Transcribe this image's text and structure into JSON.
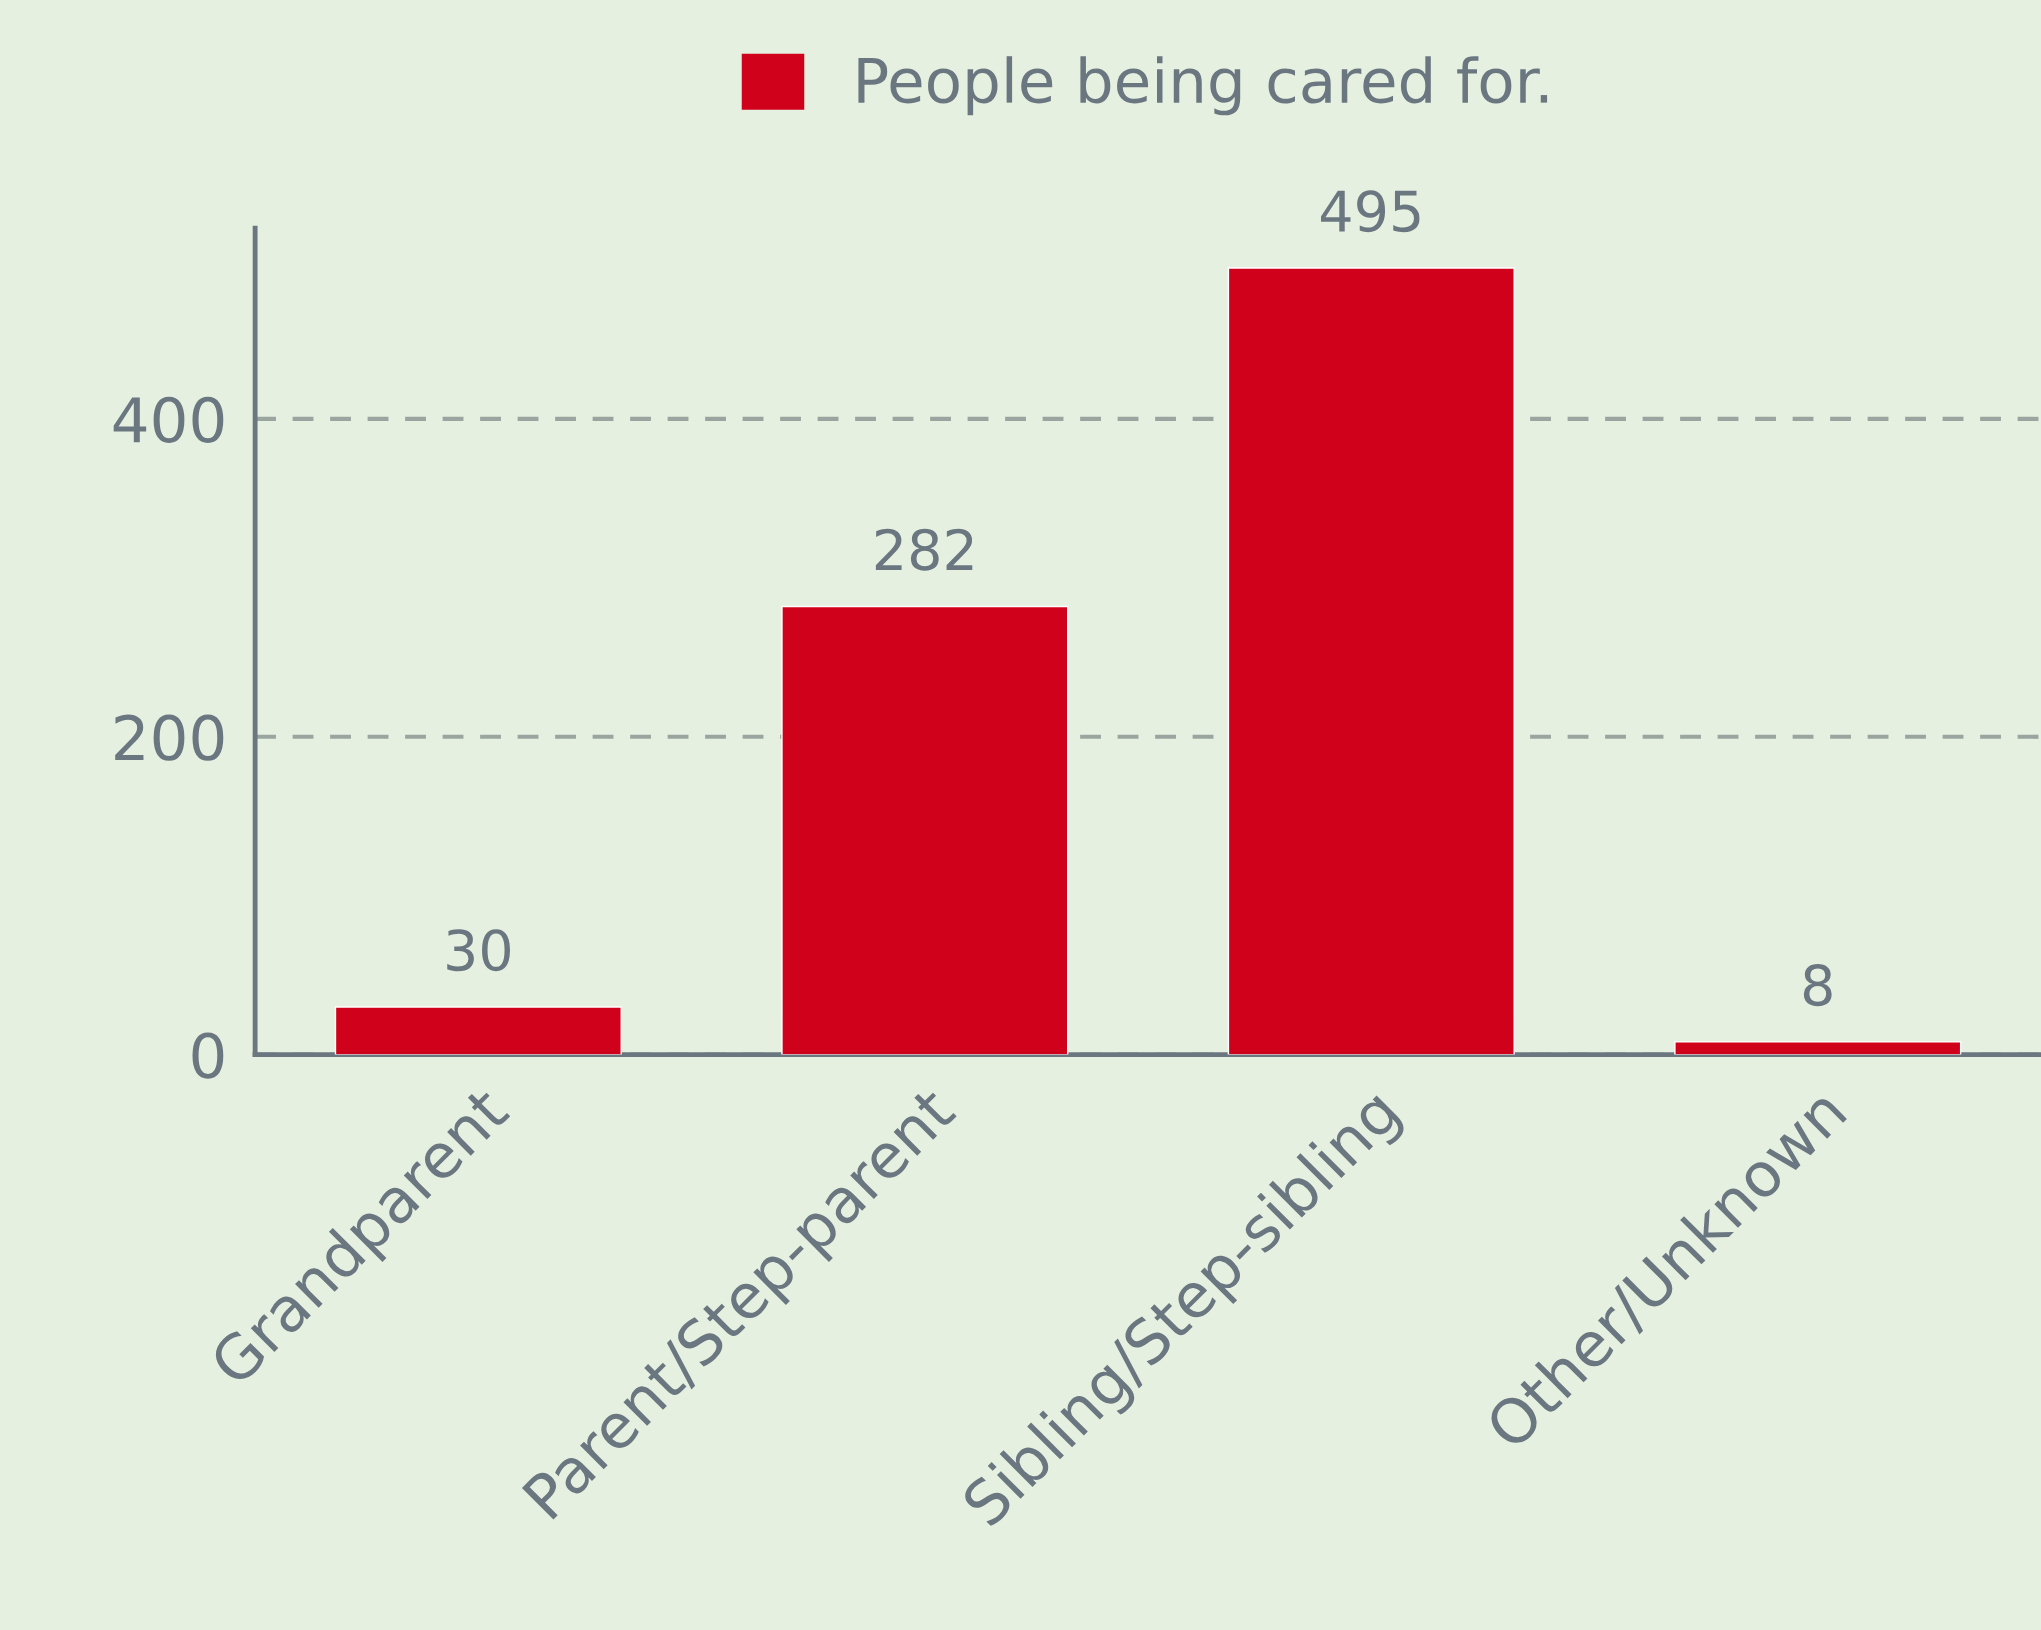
{
  "chart_data": {
    "type": "bar",
    "categories": [
      "Grandparent",
      "Parent/Step-parent",
      "Sibling/Step-sibling",
      "Other/Unknown"
    ],
    "series": [
      {
        "name": "People being cared for.",
        "color": "#d0021b",
        "values": [
          30,
          282,
          495,
          8
        ]
      }
    ],
    "ylim": [
      0,
      520
    ],
    "yticks": [
      0,
      200,
      400
    ],
    "grid": "y",
    "legend": "top",
    "data_labels": true
  }
}
